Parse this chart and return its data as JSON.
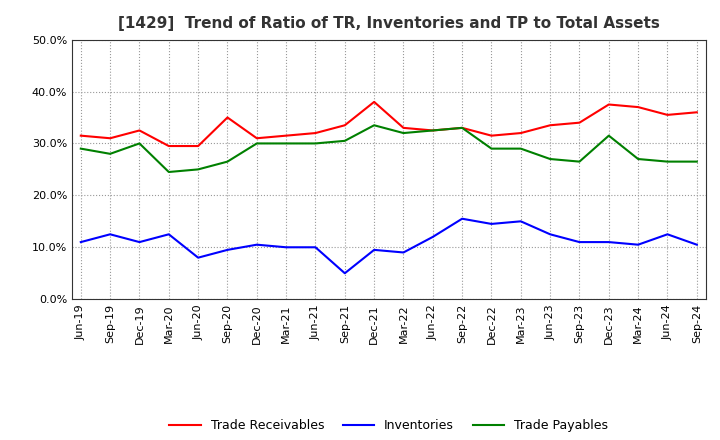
{
  "title": "[1429]  Trend of Ratio of TR, Inventories and TP to Total Assets",
  "x_labels": [
    "Jun-19",
    "Sep-19",
    "Dec-19",
    "Mar-20",
    "Jun-20",
    "Sep-20",
    "Dec-20",
    "Mar-21",
    "Jun-21",
    "Sep-21",
    "Dec-21",
    "Mar-22",
    "Jun-22",
    "Sep-22",
    "Dec-22",
    "Mar-23",
    "Jun-23",
    "Sep-23",
    "Dec-23",
    "Mar-24",
    "Jun-24",
    "Sep-24"
  ],
  "trade_receivables": [
    0.315,
    0.31,
    0.325,
    0.295,
    0.295,
    0.35,
    0.31,
    0.315,
    0.32,
    0.335,
    0.38,
    0.33,
    0.325,
    0.33,
    0.315,
    0.32,
    0.335,
    0.34,
    0.375,
    0.37,
    0.355,
    0.36
  ],
  "inventories": [
    0.11,
    0.125,
    0.11,
    0.125,
    0.08,
    0.095,
    0.105,
    0.1,
    0.1,
    0.05,
    0.095,
    0.09,
    0.12,
    0.155,
    0.145,
    0.15,
    0.125,
    0.11,
    0.11,
    0.105,
    0.125,
    0.105
  ],
  "trade_payables": [
    0.29,
    0.28,
    0.3,
    0.245,
    0.25,
    0.265,
    0.3,
    0.3,
    0.3,
    0.305,
    0.335,
    0.32,
    0.325,
    0.33,
    0.29,
    0.29,
    0.27,
    0.265,
    0.315,
    0.27,
    0.265,
    0.265
  ],
  "color_tr": "#FF0000",
  "color_inv": "#0000FF",
  "color_tp": "#008000",
  "ylim": [
    0.0,
    0.5
  ],
  "yticks": [
    0.0,
    0.1,
    0.2,
    0.3,
    0.4,
    0.5
  ],
  "background_color": "#FFFFFF",
  "plot_background_color": "#FFFFFF",
  "title_fontsize": 11,
  "tick_fontsize": 8,
  "legend_fontsize": 9
}
